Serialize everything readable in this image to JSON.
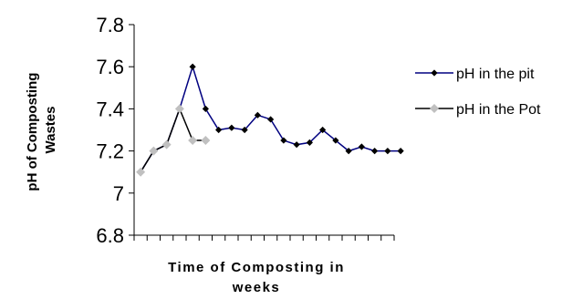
{
  "chart_data": {
    "type": "line",
    "title": "",
    "xlabel_lines": [
      "Time of Composting in",
      "weeks"
    ],
    "ylabel_lines": [
      "pH of Composting",
      "Wastes"
    ],
    "ylim": [
      6.8,
      7.8
    ],
    "yticks": [
      "6.8",
      "7",
      "7.2",
      "7.4",
      "7.6",
      "7.8"
    ],
    "x_tick_count": 20,
    "grid": false,
    "legend_position": "right",
    "series": [
      {
        "name": "pH in the pit",
        "color": "#000080",
        "marker_color": "#000000",
        "marker": "diamond",
        "values": [
          7.1,
          7.2,
          7.23,
          7.4,
          7.6,
          7.4,
          7.3,
          7.31,
          7.3,
          7.37,
          7.35,
          7.25,
          7.23,
          7.24,
          7.3,
          7.25,
          7.2,
          7.22,
          7.2,
          7.2,
          7.2
        ]
      },
      {
        "name": "pH in the Pot",
        "color": "#000000",
        "marker_color": "#c0c0c0",
        "marker": "diamond",
        "values": [
          7.1,
          7.2,
          7.23,
          7.4,
          7.25,
          7.25
        ]
      }
    ]
  }
}
